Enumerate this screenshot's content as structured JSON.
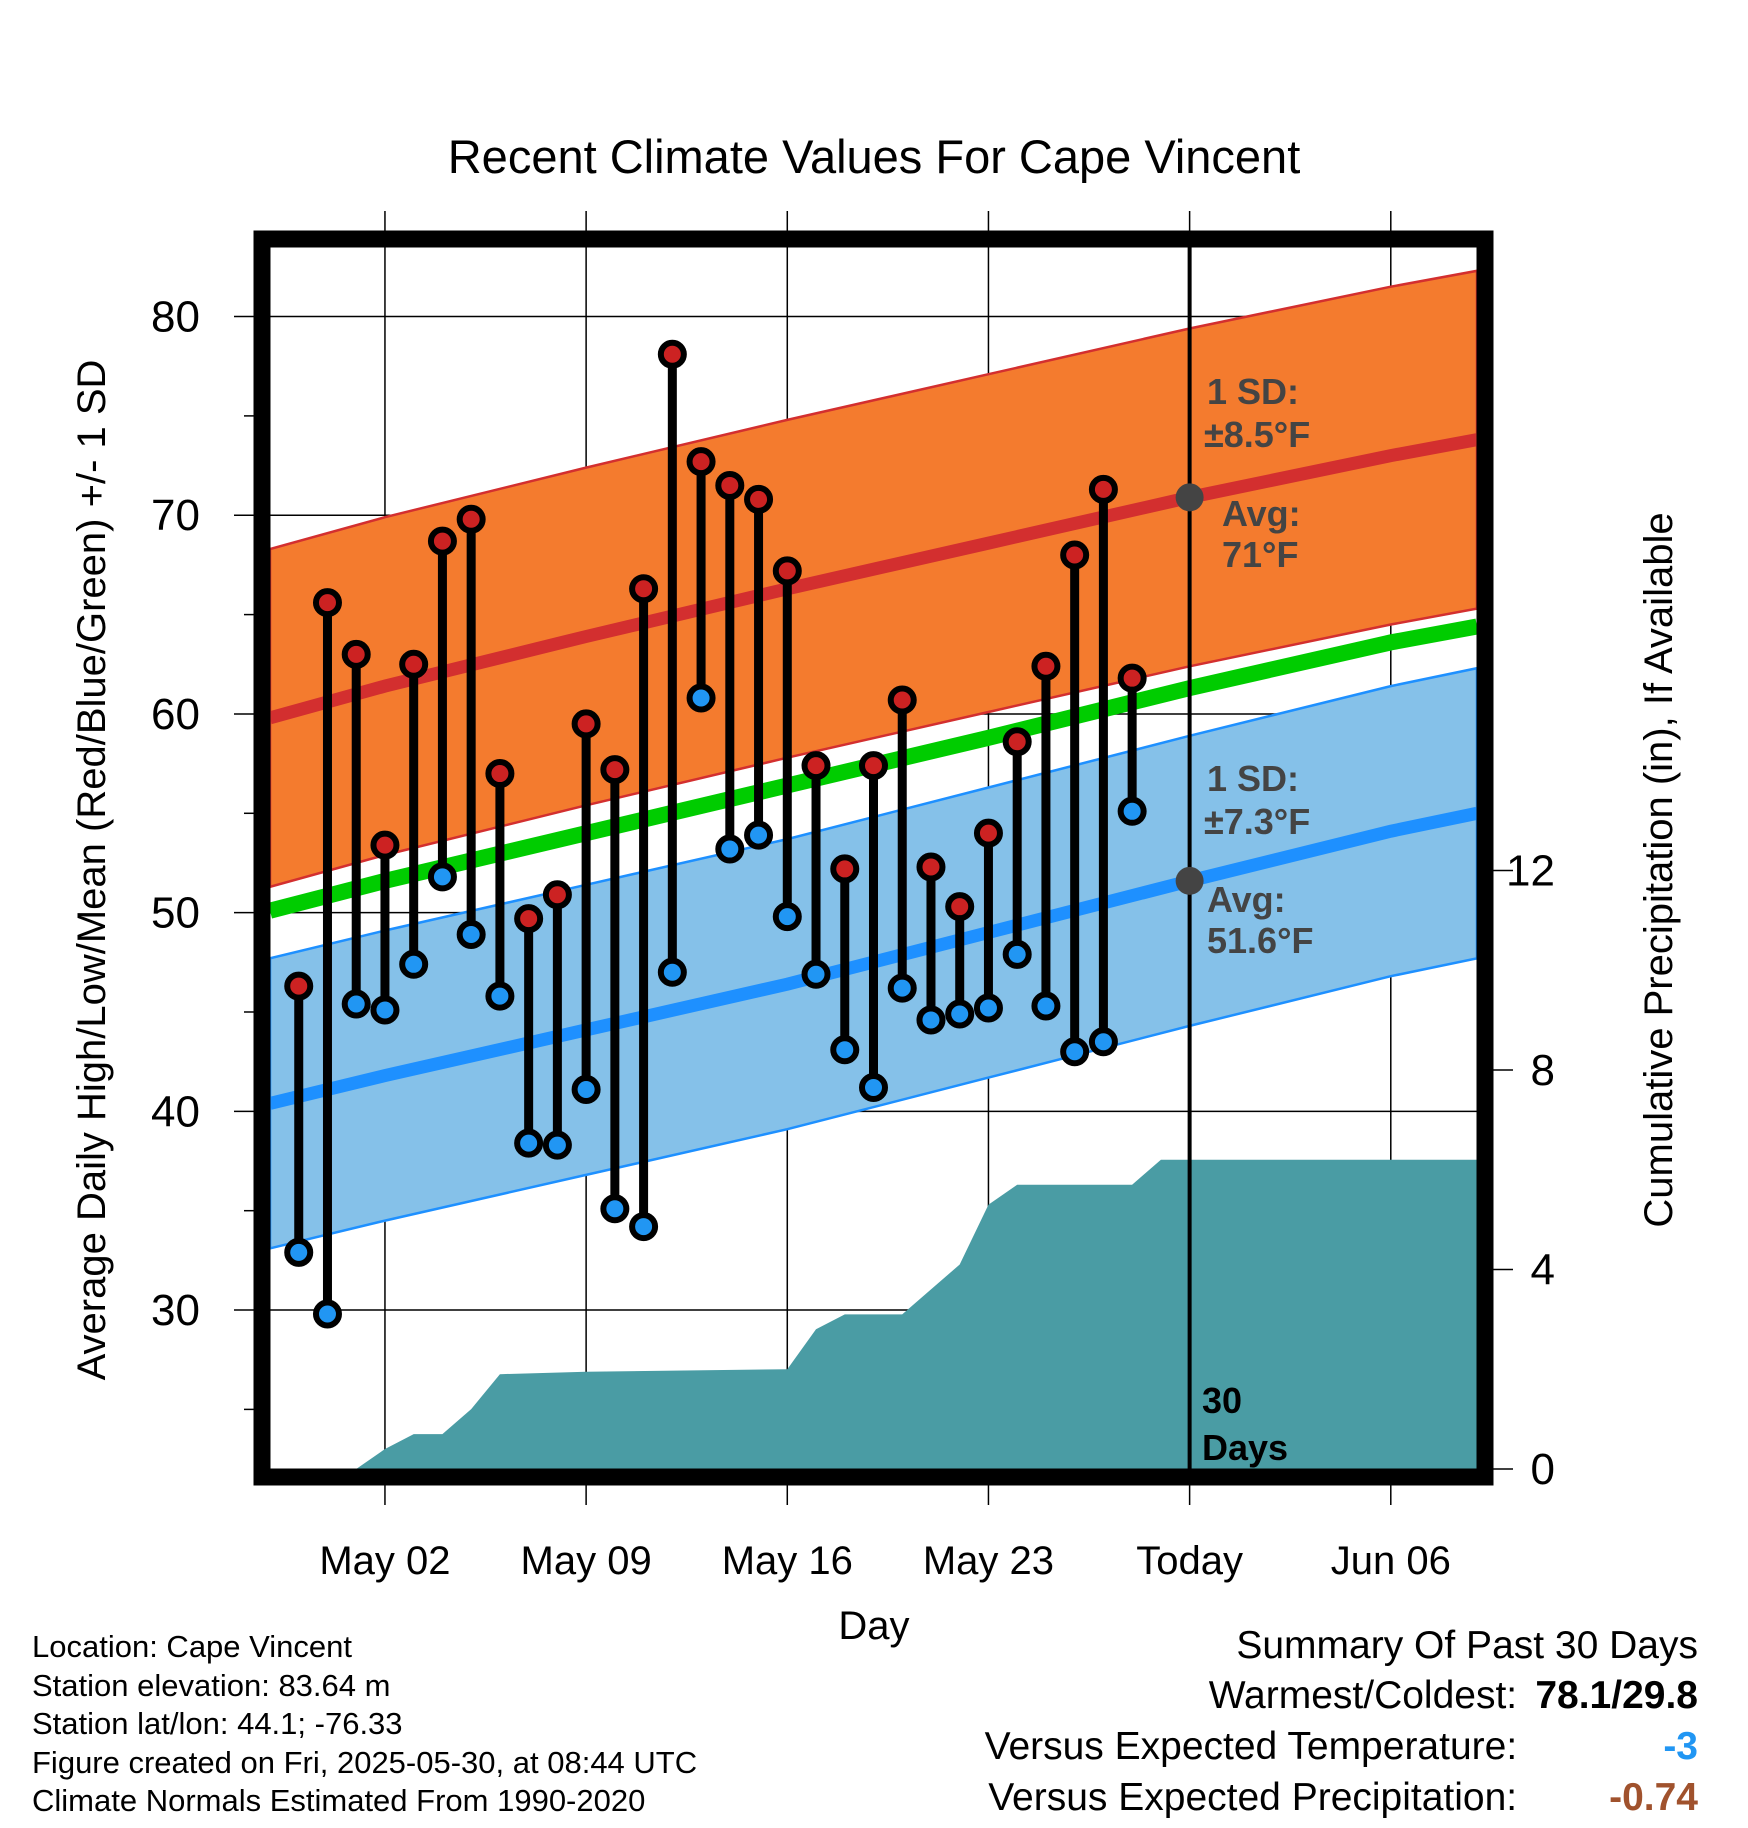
{
  "chart_data": {
    "type": "line",
    "title": "Recent Climate Values For Cape Vincent",
    "xlabel": "Day",
    "ylabel": "Average Daily High/Low/Mean (Red/Blue/Green) +/- 1 SD",
    "y2label": "Cumulative Precipitation (in), If Available",
    "ylim": [
      22,
      83.5
    ],
    "y2lim": [
      0,
      24.5
    ],
    "yticks": [
      30,
      40,
      50,
      60,
      70,
      80
    ],
    "y2ticks": [
      0,
      4,
      8,
      12
    ],
    "xlim": [
      "2025-04-28",
      "2025-06-09"
    ],
    "xticks": [
      {
        "date": "2025-05-02",
        "label": "May 02"
      },
      {
        "date": "2025-05-09",
        "label": "May 09"
      },
      {
        "date": "2025-05-16",
        "label": "May 16"
      },
      {
        "date": "2025-05-23",
        "label": "May 23"
      },
      {
        "date": "2025-05-30",
        "label": "Today"
      },
      {
        "date": "2025-06-06",
        "label": "Jun 06"
      }
    ],
    "today": "2025-05-30",
    "grid": true,
    "normals": {
      "dates": [
        "2025-04-28",
        "2025-05-02",
        "2025-05-09",
        "2025-05-16",
        "2025-05-23",
        "2025-05-30",
        "2025-06-06",
        "2025-06-09"
      ],
      "high_avg": [
        59.8,
        61.4,
        63.9,
        66.3,
        68.6,
        70.9,
        73.0,
        73.8
      ],
      "high_sd": 8.5,
      "low_avg": [
        40.4,
        41.8,
        44.1,
        46.4,
        49.0,
        51.6,
        54.1,
        55.0
      ],
      "low_sd": 7.3,
      "mean_avg": [
        50.1,
        51.6,
        54.0,
        56.4,
        58.8,
        61.3,
        63.6,
        64.4
      ]
    },
    "series": [
      {
        "name": "High",
        "x": [
          "2025-04-29",
          "2025-04-30",
          "2025-05-01",
          "2025-05-02",
          "2025-05-03",
          "2025-05-04",
          "2025-05-05",
          "2025-05-06",
          "2025-05-07",
          "2025-05-08",
          "2025-05-09",
          "2025-05-10",
          "2025-05-11",
          "2025-05-12",
          "2025-05-13",
          "2025-05-14",
          "2025-05-15",
          "2025-05-16",
          "2025-05-17",
          "2025-05-18",
          "2025-05-19",
          "2025-05-20",
          "2025-05-21",
          "2025-05-22",
          "2025-05-23",
          "2025-05-24",
          "2025-05-25",
          "2025-05-26",
          "2025-05-27",
          "2025-05-28",
          "2025-05-29"
        ],
        "values": [
          46.3,
          65.6,
          63.0,
          53.4,
          62.5,
          68.7,
          69.8,
          57.0,
          49.7,
          50.9,
          59.5,
          57.2,
          66.3,
          78.1,
          72.7,
          71.5,
          70.8,
          67.2,
          57.4,
          52.2,
          57.4,
          60.7,
          52.3,
          50.3,
          54.0,
          58.6,
          62.4,
          68.0,
          71.3,
          61.8,
          null
        ]
      },
      {
        "name": "Low",
        "x": [
          "2025-04-29",
          "2025-04-30",
          "2025-05-01",
          "2025-05-02",
          "2025-05-03",
          "2025-05-04",
          "2025-05-05",
          "2025-05-06",
          "2025-05-07",
          "2025-05-08",
          "2025-05-09",
          "2025-05-10",
          "2025-05-11",
          "2025-05-12",
          "2025-05-13",
          "2025-05-14",
          "2025-05-15",
          "2025-05-16",
          "2025-05-17",
          "2025-05-18",
          "2025-05-19",
          "2025-05-20",
          "2025-05-21",
          "2025-05-22",
          "2025-05-23",
          "2025-05-24",
          "2025-05-25",
          "2025-05-26",
          "2025-05-27",
          "2025-05-28",
          "2025-05-29"
        ],
        "values": [
          32.9,
          29.8,
          45.4,
          45.1,
          47.4,
          51.8,
          48.9,
          45.8,
          38.4,
          38.3,
          41.1,
          35.1,
          34.2,
          47.0,
          60.8,
          53.2,
          53.9,
          49.8,
          46.9,
          43.1,
          41.2,
          46.2,
          44.6,
          44.9,
          45.2,
          47.9,
          45.3,
          43.0,
          43.5,
          55.1,
          null
        ]
      }
    ],
    "precip_cumulative": {
      "dates": [
        "2025-05-01",
        "2025-05-02",
        "2025-05-03",
        "2025-05-04",
        "2025-05-05",
        "2025-05-06",
        "2025-05-09",
        "2025-05-16",
        "2025-05-17",
        "2025-05-18",
        "2025-05-20",
        "2025-05-21",
        "2025-05-22",
        "2025-05-23",
        "2025-05-24",
        "2025-05-26",
        "2025-05-28",
        "2025-05-29",
        "2025-06-09"
      ],
      "values": [
        0.0,
        0.4,
        0.7,
        0.7,
        1.2,
        1.9,
        1.95,
        2.0,
        2.8,
        3.1,
        3.1,
        3.6,
        4.1,
        5.3,
        5.7,
        5.7,
        5.7,
        6.2,
        6.2
      ]
    },
    "annotations": {
      "high_sd_label": "1 SD:",
      "high_sd_value": "±8.5°F",
      "high_avg_label": "Avg:",
      "high_avg_value": "71°F",
      "low_sd_label": "1 SD:",
      "low_sd_value": "±7.3°F",
      "low_avg_label": "Avg:",
      "low_avg_value": "51.6°F",
      "days_number": "30",
      "days_word": "Days"
    },
    "colors": {
      "high_band": "#F47B2E",
      "high_line": "#D32F2F",
      "low_band": "#85C1E9",
      "low_line": "#1E90FF",
      "mean_line": "#00CC00",
      "precip": "#4A9CA4",
      "high_marker": "#CC2222",
      "low_marker": "#2196F3",
      "annotation_text": "#444444",
      "today_marker": "#444444"
    }
  },
  "footer": {
    "location": "Location: Cape Vincent",
    "elevation": "Station elevation: 83.64 m",
    "latlon": "Station lat/lon: 44.1; -76.33",
    "created": "Figure created on Fri, 2025-05-30, at 08:44 UTC",
    "normals": "Climate Normals Estimated From 1990-2020"
  },
  "summary": {
    "title": "Summary Of Past 30 Days",
    "warm_cold_label": "Warmest/Coldest:",
    "warm_cold_value": "78.1/29.8",
    "temp_label": "Versus Expected Temperature:",
    "temp_value": "-3",
    "temp_color": "#2196F3",
    "precip_label": "Versus Expected Precipitation:",
    "precip_value": "-0.74",
    "precip_color": "#A0522D"
  }
}
